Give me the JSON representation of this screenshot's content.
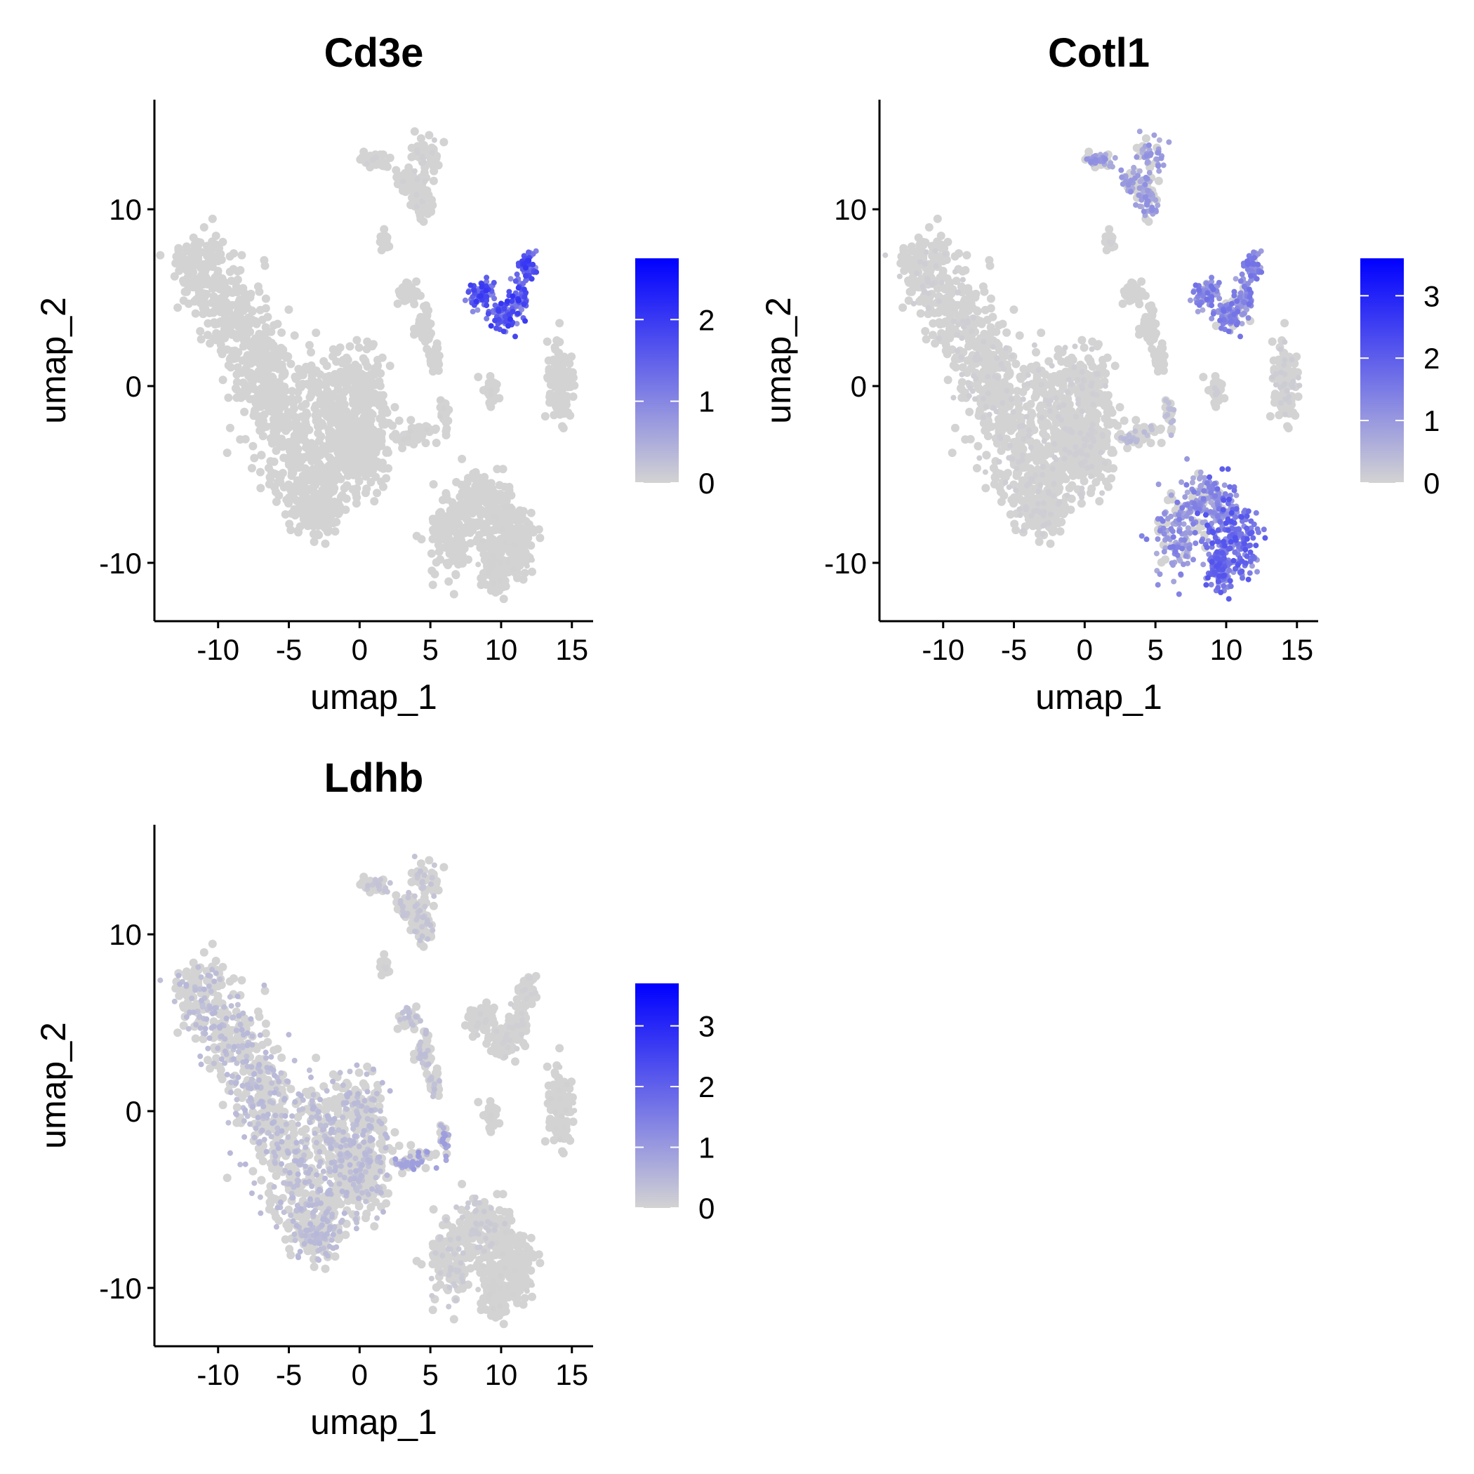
{
  "chart_data": [
    {
      "type": "scatter",
      "title": "Cd3e",
      "xlabel": "umap_1",
      "ylabel": "umap_2",
      "xlim": [
        -14.5,
        16.5
      ],
      "ylim": [
        -13.3,
        16.2
      ],
      "xticks": [
        -10,
        -5,
        0,
        5,
        10,
        15
      ],
      "xtick_labels": [
        "-10",
        "-5",
        "0",
        "5",
        "10",
        "15"
      ],
      "yticks": [
        -10,
        0,
        10
      ],
      "ytick_labels": [
        "-10",
        "0",
        "10"
      ],
      "legend": {
        "max": 2.75,
        "ticks": [
          0,
          1,
          2
        ],
        "tick_labels": [
          "0",
          "1",
          "2"
        ],
        "low_color": "#d3d3d3",
        "high_color": "#0000ff"
      },
      "expression": {
        "cluster_levels": [
          0,
          0.1,
          0,
          0,
          1.6,
          0,
          0.05,
          0.05,
          0,
          0.03
        ]
      }
    },
    {
      "type": "scatter",
      "title": "Cotl1",
      "xlabel": "umap_1",
      "ylabel": "umap_2",
      "xlim": [
        -14.5,
        16.5
      ],
      "ylim": [
        -13.3,
        16.2
      ],
      "xticks": [
        -10,
        -5,
        0,
        5,
        10,
        15
      ],
      "xtick_labels": [
        "-10",
        "-5",
        "0",
        "5",
        "10",
        "15"
      ],
      "yticks": [
        -10,
        0,
        10
      ],
      "ytick_labels": [
        "-10",
        "0",
        "10"
      ],
      "legend": {
        "max": 3.6,
        "ticks": [
          0,
          1,
          2,
          3
        ],
        "tick_labels": [
          "0",
          "1",
          "2",
          "3"
        ],
        "low_color": "#d3d3d3",
        "high_color": "#0000ff"
      },
      "expression": {
        "cluster_levels": [
          0.15,
          1.1,
          0.1,
          0,
          1.4,
          0.2,
          0.2,
          0.6,
          1.3,
          1.7
        ]
      }
    },
    {
      "type": "scatter",
      "title": "Ldhb",
      "xlabel": "umap_1",
      "ylabel": "umap_2",
      "xlim": [
        -14.5,
        16.5
      ],
      "ylim": [
        -13.3,
        16.2
      ],
      "xticks": [
        -10,
        -5,
        0,
        5,
        10,
        15
      ],
      "xtick_labels": [
        "-10",
        "-5",
        "0",
        "5",
        "10",
        "15"
      ],
      "yticks": [
        -10,
        0,
        10
      ],
      "ytick_labels": [
        "-10",
        "0",
        "10"
      ],
      "legend": {
        "max": 3.7,
        "ticks": [
          0,
          1,
          2,
          3
        ],
        "tick_labels": [
          "0",
          "1",
          "2",
          "3"
        ],
        "low_color": "#d3d3d3",
        "high_color": "#0000ff"
      },
      "expression": {
        "cluster_levels": [
          0.6,
          0.4,
          0.1,
          0.5,
          0.1,
          0.05,
          0.05,
          1.0,
          0.25,
          0.05
        ]
      }
    }
  ]
}
